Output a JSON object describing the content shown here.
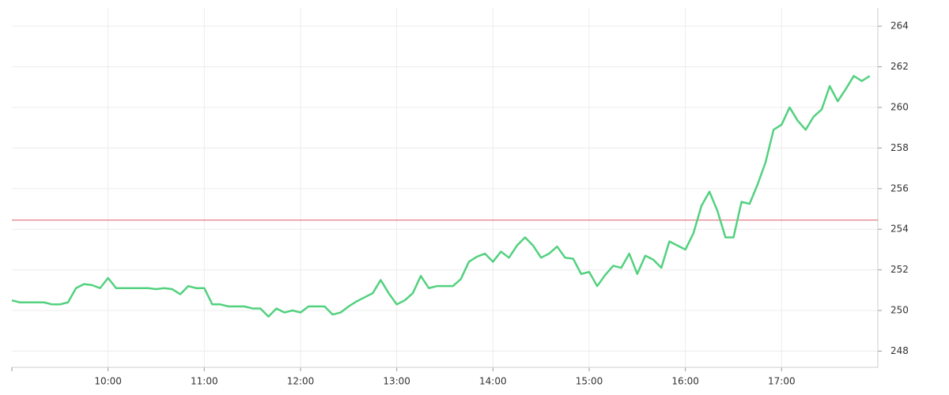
{
  "chart_data": {
    "type": "line",
    "x": [
      "09:00",
      "09:05",
      "09:10",
      "09:15",
      "09:20",
      "09:25",
      "09:30",
      "09:35",
      "09:40",
      "09:45",
      "09:50",
      "09:55",
      "10:00",
      "10:05",
      "10:10",
      "10:15",
      "10:20",
      "10:25",
      "10:30",
      "10:35",
      "10:40",
      "10:45",
      "10:50",
      "10:55",
      "11:00",
      "11:05",
      "11:10",
      "11:15",
      "11:20",
      "11:25",
      "11:30",
      "11:35",
      "11:40",
      "11:45",
      "11:50",
      "11:55",
      "12:00",
      "12:05",
      "12:10",
      "12:15",
      "12:20",
      "12:25",
      "12:30",
      "12:35",
      "12:40",
      "12:45",
      "12:50",
      "12:55",
      "13:00",
      "13:05",
      "13:10",
      "13:15",
      "13:20",
      "13:25",
      "13:30",
      "13:35",
      "13:40",
      "13:45",
      "13:50",
      "13:55",
      "14:00",
      "14:05",
      "14:10",
      "14:15",
      "14:20",
      "14:25",
      "14:30",
      "14:35",
      "14:40",
      "14:45",
      "14:50",
      "14:55",
      "15:00",
      "15:05",
      "15:10",
      "15:15",
      "15:20",
      "15:25",
      "15:30",
      "15:35",
      "15:40",
      "15:45",
      "15:50",
      "15:55",
      "16:00",
      "16:05",
      "16:10",
      "16:15",
      "16:20",
      "16:25",
      "16:30",
      "16:35",
      "16:40",
      "16:45",
      "16:50",
      "16:55",
      "17:00",
      "17:05",
      "17:10",
      "17:15",
      "17:20",
      "17:25",
      "17:30",
      "17:35",
      "17:40",
      "17:45",
      "17:50",
      "17:55"
    ],
    "series": [
      {
        "color": "#52d17f",
        "values": [
          250.5,
          250.4,
          250.4,
          250.4,
          250.4,
          250.3,
          250.3,
          250.4,
          251.1,
          251.3,
          251.25,
          251.1,
          251.6,
          251.1,
          251.1,
          251.1,
          251.1,
          251.1,
          251.05,
          251.1,
          251.05,
          250.8,
          251.2,
          251.1,
          251.1,
          250.3,
          250.3,
          250.2,
          250.2,
          250.2,
          250.1,
          250.1,
          249.7,
          250.1,
          249.9,
          250.0,
          249.9,
          250.2,
          250.2,
          250.2,
          249.8,
          249.9,
          250.2,
          250.45,
          250.65,
          250.85,
          251.5,
          250.85,
          250.3,
          250.5,
          250.85,
          251.7,
          251.1,
          251.2,
          251.2,
          251.2,
          251.55,
          252.4,
          252.65,
          252.8,
          252.4,
          252.9,
          252.6,
          253.2,
          253.6,
          253.2,
          252.6,
          252.8,
          253.15,
          252.6,
          252.55,
          251.8,
          251.9,
          251.2,
          251.75,
          252.2,
          252.1,
          252.8,
          251.8,
          252.7,
          252.5,
          252.1,
          253.4,
          253.2,
          253.0,
          253.8,
          255.15,
          255.85,
          254.9,
          253.6,
          253.6,
          255.35,
          255.25,
          256.2,
          257.3,
          258.9,
          259.15,
          260.0,
          259.35,
          258.9,
          259.55,
          259.9,
          261.05,
          260.3,
          260.9,
          261.55,
          261.3,
          261.55
        ]
      }
    ],
    "reference_line": {
      "value": 254.45,
      "color": "#e0606e"
    },
    "xlim": [
      "09:00",
      "18:00"
    ],
    "xticks": [
      "10:00",
      "11:00",
      "12:00",
      "13:00",
      "14:00",
      "15:00",
      "16:00",
      "17:00"
    ],
    "ylim": [
      247.2,
      264.9
    ],
    "yticks": [
      248,
      250,
      252,
      254,
      256,
      258,
      260,
      262,
      264
    ],
    "grid": true
  }
}
